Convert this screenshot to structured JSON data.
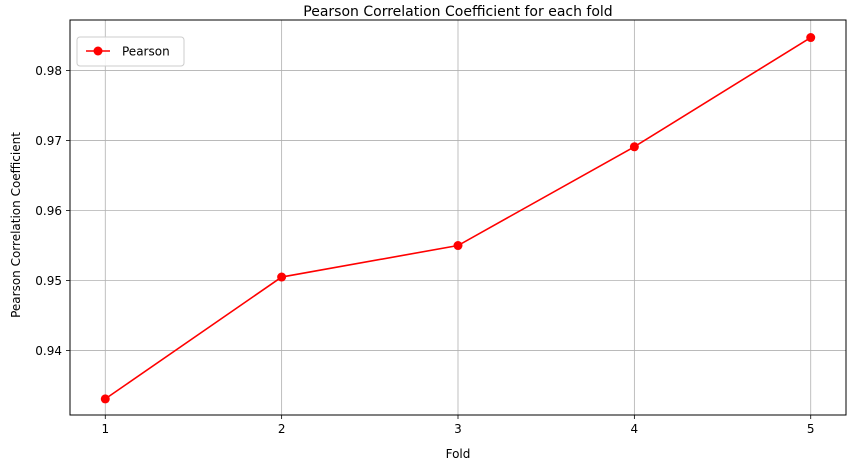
{
  "chart_data": {
    "type": "line",
    "title": "Pearson Correlation Coefficient for each fold",
    "xlabel": "Fold",
    "ylabel": "Pearson Correlation Coefficient",
    "x": [
      1,
      2,
      3,
      4,
      5
    ],
    "xticks": [
      "1",
      "2",
      "3",
      "4",
      "5"
    ],
    "yticks": [
      "0.94",
      "0.95",
      "0.96",
      "0.97",
      "0.98"
    ],
    "ylim": [
      0.9308,
      0.9872
    ],
    "xlim": [
      0.8,
      5.2
    ],
    "grid": true,
    "legend_position": "top-left",
    "series": [
      {
        "name": "Pearson",
        "color": "#ff0000",
        "marker": "circle",
        "values": [
          0.9331,
          0.9505,
          0.955,
          0.9691,
          0.9847
        ]
      }
    ]
  }
}
